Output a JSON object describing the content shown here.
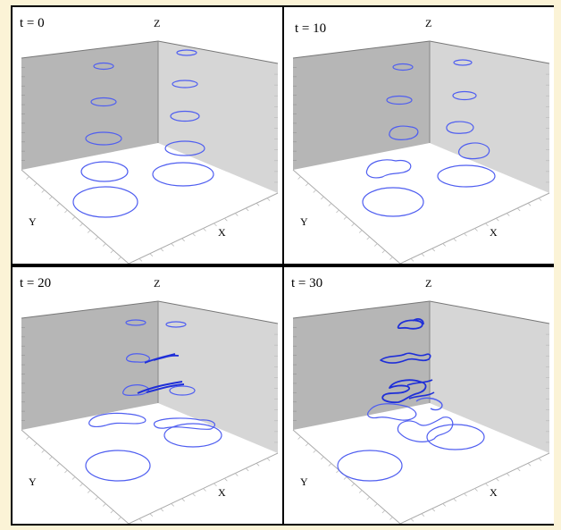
{
  "colors": {
    "background": "#fbf3d6",
    "frame": "#000000",
    "curve": "#4f5ef0",
    "curve_dense": "#1f2fd8",
    "back_wall": "#a9a9a9",
    "side_wall": "#d6d6d6"
  },
  "axis_labels": {
    "x": "X",
    "y": "Y",
    "z": "Z"
  },
  "panels": [
    {
      "time_label": "t = 0"
    },
    {
      "time_label": "t = 10"
    },
    {
      "time_label": "t = 20"
    },
    {
      "time_label": "t = 30"
    }
  ]
}
